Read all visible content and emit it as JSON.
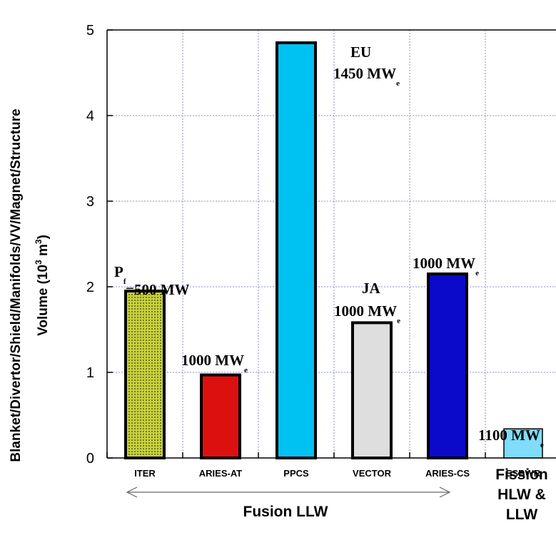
{
  "chart_data": {
    "type": "bar",
    "categories": [
      "ITER",
      "ARIES-AT",
      "PPCS",
      "VECTOR",
      "ARIES-CS",
      "ESBWR"
    ],
    "values": [
      1.95,
      0.97,
      4.85,
      1.58,
      2.15,
      0.34
    ],
    "colors": [
      "#c8d23c",
      "#dd1010",
      "#00c2f2",
      "#dedede",
      "#0a0ac8",
      "#7fdcfa"
    ],
    "ylabel_line1": "Blanket/Divertor/Shield/Manifolds/VV/Magnet/Structure",
    "ylabel_line2_prefix": "Volume (10",
    "ylabel_sup": "3",
    "ylabel_mid": " m",
    "ylabel_sup2": "3",
    "ylabel_suffix": ")",
    "ylim": [
      0,
      5
    ],
    "yticks": [
      "0",
      "1",
      "2",
      "3",
      "4",
      "5"
    ],
    "grid": true,
    "annotations": [
      {
        "lines": [
          {
            "main": "P",
            "sub": "f"
          },
          {
            "main": "=500 MW",
            "sub": ""
          }
        ],
        "bar": 0
      },
      {
        "lines": [
          {
            "main": "1000 MW",
            "sub": "e"
          }
        ],
        "bar": 1
      },
      {
        "lines": [
          {
            "main": "EU",
            "sub": ""
          },
          {
            "main": "1450 MW",
            "sub": "e"
          }
        ],
        "bar": 2
      },
      {
        "lines": [
          {
            "main": "JA",
            "sub": ""
          },
          {
            "main": "1000 MW",
            "sub": "e"
          }
        ],
        "bar": 3
      },
      {
        "lines": [
          {
            "main": "1000 MW",
            "sub": "e"
          }
        ],
        "bar": 4
      },
      {
        "lines": [
          {
            "main": "1100 MW",
            "sub": "e"
          }
        ],
        "bar": 5
      }
    ],
    "groups": {
      "fusion": "Fusion LLW",
      "fission": [
        "Fission",
        "HLW &",
        "LLW"
      ]
    }
  }
}
